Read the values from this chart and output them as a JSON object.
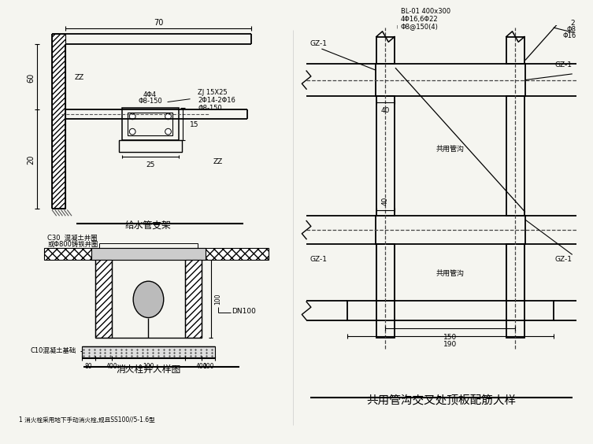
{
  "bg_color": "#f5f5f0",
  "line_color": "#000000",
  "text_color": "#000000",
  "top_left_title": "给水管支架",
  "bottom_left_title": "消火栓井大样图",
  "right_title": "共用管沟交叉处顶板配筋大样",
  "note_text": "1 消火栓采用地下手动消火栓,规且SS100//5-1.6型",
  "tl_dim70": "70",
  "tl_dim60": "60",
  "tl_dim20": "20",
  "tl_dim25": "25",
  "tl_dim15": "15",
  "tl_ZZ1": "ZZ",
  "tl_ZZ2": "ZZ",
  "tl_r1": "4Φ4",
  "tl_r2": "Φ8-150",
  "tl_r3": "ZJ 15X25",
  "tl_r4": "2Φ14-2Φ16",
  "tl_r5": "Φ8-150",
  "bl_c30a": "C30  混凝土井圈",
  "bl_c30b": "或Φ800铸铁井圈",
  "bl_dn100": "DN100",
  "bl_c10": "C10混凝土基础",
  "r_bl": "BL-01 400x300",
  "r_r1": "4Φ16,6Φ22",
  "r_r2": "Φ8@150(4)",
  "r_gz1": "GZ-1",
  "r_gygou": "共用管沟",
  "r_dim40a": "40",
  "r_dim40b": "40",
  "r_dim150": "150",
  "r_dim190": "190",
  "r_2": "2",
  "r_phi8": "Φ8",
  "r_phi16": "Φ16"
}
